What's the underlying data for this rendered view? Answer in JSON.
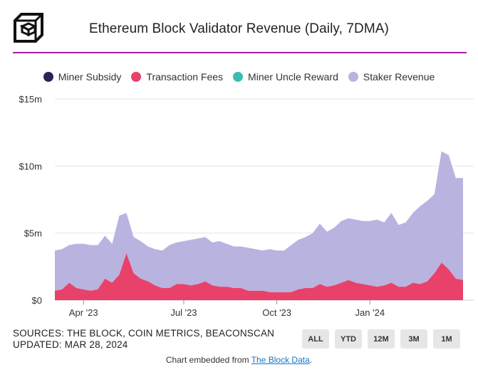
{
  "header": {
    "title": "Ethereum Block Validator Revenue (Daily, 7DMA)"
  },
  "legend": [
    {
      "label": "Miner Subsidy",
      "color": "#2b2257"
    },
    {
      "label": "Transaction Fees",
      "color": "#e8426a"
    },
    {
      "label": "Miner Uncle Reward",
      "color": "#3bbdb0"
    },
    {
      "label": "Staker Revenue",
      "color": "#b9b3e0"
    }
  ],
  "footer": {
    "sources": "SOURCES: THE BLOCK, COIN METRICS, BEACONSCAN",
    "updated": "UPDATED: MAR 28, 2024",
    "embed_prefix": "Chart embedded from ",
    "embed_link": "The Block Data",
    "embed_suffix": "."
  },
  "range_buttons": [
    "ALL",
    "YTD",
    "12M",
    "3M",
    "1M"
  ],
  "chart_data": {
    "type": "area",
    "title": "Ethereum Block Validator Revenue (Daily, 7DMA)",
    "stacked": true,
    "x_tick_labels": [
      "Apr '23",
      "Jul '23",
      "Oct '23",
      "Jan '24"
    ],
    "y_tick_labels": [
      "$0",
      "$5m",
      "$10m",
      "$15m"
    ],
    "ylim": [
      0,
      15
    ],
    "y_unit": "USD millions",
    "x_index_range": [
      0,
      57
    ],
    "x_tick_positions": [
      4,
      18,
      31,
      44
    ],
    "series": [
      {
        "name": "Transaction Fees",
        "color": "#e8426a",
        "values": [
          0.7,
          0.8,
          1.3,
          0.9,
          0.8,
          0.7,
          0.8,
          1.6,
          1.3,
          1.9,
          3.5,
          2.0,
          1.6,
          1.4,
          1.1,
          0.9,
          0.9,
          1.2,
          1.2,
          1.1,
          1.2,
          1.4,
          1.1,
          1.0,
          1.0,
          0.9,
          0.9,
          0.7,
          0.7,
          0.7,
          0.6,
          0.6,
          0.6,
          0.6,
          0.8,
          0.9,
          0.9,
          1.2,
          1.0,
          1.1,
          1.3,
          1.5,
          1.3,
          1.2,
          1.1,
          1.0,
          1.1,
          1.3,
          1.0,
          1.0,
          1.3,
          1.2,
          1.4,
          2.0,
          2.8,
          2.3,
          1.6,
          1.5
        ]
      },
      {
        "name": "Staker Revenue",
        "color": "#b9b3e0",
        "values": [
          3.0,
          3.0,
          2.8,
          3.3,
          3.4,
          3.4,
          3.3,
          3.2,
          2.9,
          4.4,
          3.0,
          2.7,
          2.8,
          2.6,
          2.7,
          2.8,
          3.2,
          3.1,
          3.2,
          3.4,
          3.4,
          3.3,
          3.2,
          3.4,
          3.2,
          3.1,
          3.1,
          3.2,
          3.1,
          3.0,
          3.2,
          3.1,
          3.1,
          3.5,
          3.7,
          3.8,
          4.1,
          4.5,
          4.1,
          4.3,
          4.6,
          4.6,
          4.7,
          4.7,
          4.8,
          5.0,
          4.7,
          5.2,
          4.6,
          4.8,
          5.2,
          5.8,
          6.0,
          5.9,
          8.3,
          8.5,
          7.5,
          7.6
        ]
      },
      {
        "name": "Miner Subsidy",
        "color": "#2b2257",
        "values": [
          0,
          0,
          0,
          0,
          0,
          0,
          0,
          0,
          0,
          0,
          0,
          0,
          0,
          0,
          0,
          0,
          0,
          0,
          0,
          0,
          0,
          0,
          0,
          0,
          0,
          0,
          0,
          0,
          0,
          0,
          0,
          0,
          0,
          0,
          0,
          0,
          0,
          0,
          0,
          0,
          0,
          0,
          0,
          0,
          0,
          0,
          0,
          0,
          0,
          0,
          0,
          0,
          0,
          0,
          0,
          0,
          0,
          0
        ]
      },
      {
        "name": "Miner Uncle Reward",
        "color": "#3bbdb0",
        "values": [
          0,
          0,
          0,
          0,
          0,
          0,
          0,
          0,
          0,
          0,
          0,
          0,
          0,
          0,
          0,
          0,
          0,
          0,
          0,
          0,
          0,
          0,
          0,
          0,
          0,
          0,
          0,
          0,
          0,
          0,
          0,
          0,
          0,
          0,
          0,
          0,
          0,
          0,
          0,
          0,
          0,
          0,
          0,
          0,
          0,
          0,
          0,
          0,
          0,
          0,
          0,
          0,
          0,
          0,
          0,
          0,
          0,
          0
        ]
      }
    ],
    "grid": true,
    "legend_position": "top"
  }
}
